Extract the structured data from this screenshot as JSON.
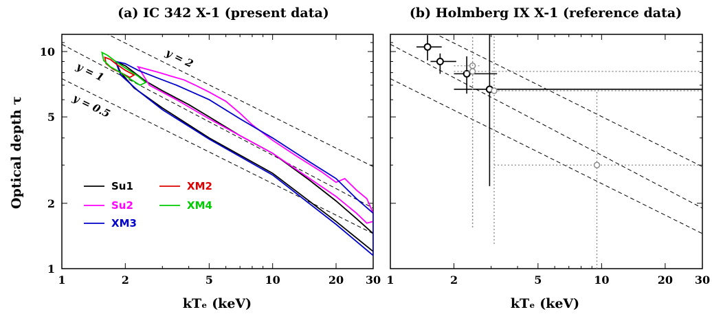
{
  "ylabel": "Optical depth τ",
  "xlabel": "kTₑ (keV)",
  "chart_data": [
    {
      "type": "line",
      "title": "(a) IC 342 X-1 (present data)",
      "xlabel": "kTₑ (keV)",
      "ylabel": "Optical depth τ",
      "xscale": "log",
      "yscale": "log",
      "xlim": [
        1,
        30
      ],
      "ylim": [
        1,
        12
      ],
      "xticks": [
        1,
        2,
        5,
        10,
        20,
        30
      ],
      "yticks": [
        1,
        2,
        5,
        10
      ],
      "reference_lines": [
        {
          "label": "y = 2",
          "points": [
            [
              1,
              15.3
            ],
            [
              30,
              2.95
            ]
          ]
        },
        {
          "label": "y = 1",
          "points": [
            [
              1,
              10.8
            ],
            [
              30,
              1.9
            ]
          ]
        },
        {
          "label": "y = 0.5",
          "points": [
            [
              1,
              7.5
            ],
            [
              30,
              1.45
            ]
          ]
        }
      ],
      "series": [
        {
          "name": "Su1",
          "color": "#000000",
          "closed": true,
          "points": [
            [
              1.8,
              9.0
            ],
            [
              2.0,
              8.6
            ],
            [
              2.5,
              7.3
            ],
            [
              3,
              6.6
            ],
            [
              4,
              5.7
            ],
            [
              5,
              5.0
            ],
            [
              7,
              4.1
            ],
            [
              10,
              3.4
            ],
            [
              15,
              2.55
            ],
            [
              20,
              2.05
            ],
            [
              25,
              1.7
            ],
            [
              30,
              1.45
            ],
            [
              30,
              1.2
            ],
            [
              20,
              1.65
            ],
            [
              10,
              2.75
            ],
            [
              5,
              4.0
            ],
            [
              3,
              5.5
            ],
            [
              2.2,
              6.8
            ],
            [
              1.9,
              8.0
            ],
            [
              1.8,
              9.0
            ]
          ]
        },
        {
          "name": "Su2",
          "color": "#ff00ff",
          "closed": true,
          "points": [
            [
              2.3,
              8.5
            ],
            [
              2.9,
              8.0
            ],
            [
              3.3,
              7.7
            ],
            [
              3.8,
              7.4
            ],
            [
              4.3,
              7.0
            ],
            [
              5,
              6.5
            ],
            [
              6,
              5.9
            ],
            [
              7,
              5.2
            ],
            [
              8,
              4.6
            ],
            [
              10,
              3.9
            ],
            [
              13,
              3.3
            ],
            [
              17,
              2.8
            ],
            [
              20,
              2.5
            ],
            [
              22,
              2.6
            ],
            [
              25,
              2.3
            ],
            [
              28,
              2.1
            ],
            [
              30,
              1.8
            ],
            [
              30,
              1.65
            ],
            [
              28,
              1.62
            ],
            [
              25,
              1.8
            ],
            [
              20,
              2.15
            ],
            [
              15,
              2.6
            ],
            [
              10,
              3.4
            ],
            [
              7,
              4.1
            ],
            [
              5,
              4.9
            ],
            [
              3.5,
              6.0
            ],
            [
              2.6,
              7.0
            ],
            [
              2.3,
              8.5
            ]
          ]
        },
        {
          "name": "XM3",
          "color": "#0000cc",
          "closed": true,
          "points": [
            [
              1.8,
              9.0
            ],
            [
              2.0,
              8.8
            ],
            [
              2.3,
              8.2
            ],
            [
              2.8,
              7.6
            ],
            [
              3.5,
              7.0
            ],
            [
              5,
              6.0
            ],
            [
              7,
              4.9
            ],
            [
              10,
              4.0
            ],
            [
              15,
              3.1
            ],
            [
              20,
              2.6
            ],
            [
              25,
              2.1
            ],
            [
              30,
              1.8
            ],
            [
              30,
              1.15
            ],
            [
              20,
              1.6
            ],
            [
              10,
              2.7
            ],
            [
              5,
              3.95
            ],
            [
              3,
              5.4
            ],
            [
              2.3,
              6.6
            ],
            [
              1.9,
              7.8
            ],
            [
              1.8,
              9.0
            ]
          ]
        },
        {
          "name": "XM2",
          "color": "#dd0000",
          "closed": true,
          "points": [
            [
              1.6,
              9.4
            ],
            [
              1.7,
              9.2
            ],
            [
              1.8,
              8.8
            ],
            [
              2.0,
              8.2
            ],
            [
              2.2,
              7.8
            ],
            [
              2.1,
              7.6
            ],
            [
              1.9,
              8.0
            ],
            [
              1.75,
              8.3
            ],
            [
              1.62,
              8.8
            ],
            [
              1.6,
              9.4
            ]
          ]
        },
        {
          "name": "XM4",
          "color": "#00cc00",
          "closed": true,
          "points": [
            [
              1.55,
              9.9
            ],
            [
              1.65,
              9.6
            ],
            [
              1.8,
              9.0
            ],
            [
              2.0,
              8.4
            ],
            [
              2.3,
              7.7
            ],
            [
              2.5,
              7.2
            ],
            [
              2.35,
              7.0
            ],
            [
              2.1,
              7.5
            ],
            [
              1.9,
              8.0
            ],
            [
              1.7,
              8.5
            ],
            [
              1.58,
              9.1
            ],
            [
              1.55,
              9.9
            ]
          ]
        }
      ],
      "legend": {
        "position": "bottom-left",
        "entries": [
          "Su1",
          "XM2",
          "Su2",
          "XM4",
          "XM3"
        ]
      }
    },
    {
      "type": "scatter",
      "title": "(b) Holmberg IX X-1 (reference data)",
      "xlabel": "kTₑ (keV)",
      "xscale": "log",
      "yscale": "log",
      "xlim": [
        1,
        30
      ],
      "ylim": [
        1,
        12
      ],
      "xticks": [
        1,
        2,
        5,
        10,
        20,
        30
      ],
      "yticks": [
        1,
        2,
        5,
        10
      ],
      "reference_lines": [
        {
          "label": "y = 2",
          "points": [
            [
              1,
              15.3
            ],
            [
              30,
              2.95
            ]
          ]
        },
        {
          "label": "y = 1",
          "points": [
            [
              1,
              10.8
            ],
            [
              30,
              1.9
            ]
          ]
        },
        {
          "label": "y = 0.5",
          "points": [
            [
              1,
              7.5
            ],
            [
              30,
              1.45
            ]
          ]
        }
      ],
      "series": [
        {
          "style": "solid",
          "color": "#000000",
          "points": [
            {
              "x": 1.5,
              "y": 10.5,
              "xerr": [
                1.33,
                1.75
              ],
              "yerr": [
                9.1,
                11.9
              ]
            },
            {
              "x": 1.72,
              "y": 9.0,
              "xerr": [
                1.55,
                2.05
              ],
              "yerr": [
                7.9,
                9.8
              ]
            },
            {
              "x": 2.3,
              "y": 7.9,
              "xerr": [
                2.0,
                3.2
              ],
              "yerr": [
                6.4,
                9.5
              ]
            },
            {
              "x": 2.95,
              "y": 6.7,
              "xerr": [
                2.0,
                30
              ],
              "yerr": [
                2.4,
                12
              ]
            }
          ]
        },
        {
          "style": "dotted",
          "color": "#888888",
          "points": [
            {
              "x": 2.45,
              "y": 8.6,
              "xerr": [
                2.0,
                2.7
              ],
              "yerr": [
                1.55,
                12
              ]
            },
            {
              "x": 2.45,
              "y": 8.1,
              "xerr": [
                2.0,
                30
              ],
              "yerr": [
                1.55,
                12
              ]
            },
            {
              "x": 3.1,
              "y": 6.6,
              "xerr": [
                3.0,
                30
              ],
              "yerr": [
                1.3,
                12
              ]
            },
            {
              "x": 9.5,
              "y": 3.0,
              "xerr": [
                3.1,
                30
              ],
              "yerr": [
                1.0,
                6.6
              ]
            }
          ]
        }
      ]
    }
  ]
}
